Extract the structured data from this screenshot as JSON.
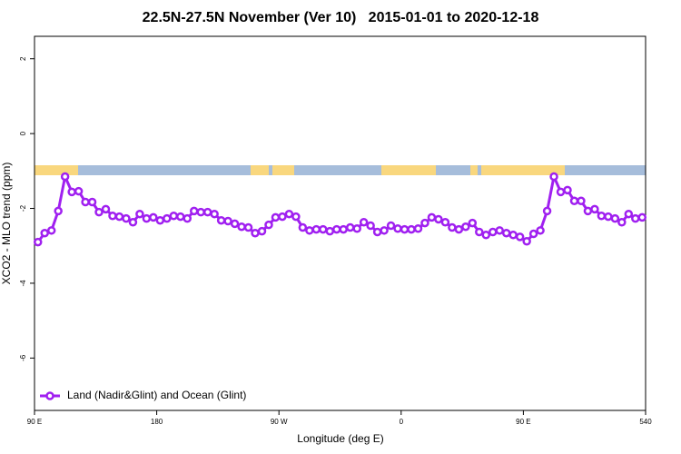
{
  "chart_data": {
    "type": "line",
    "title": "22.5N-27.5N November (Ver 10)   2015-01-01 to 2020-12-18",
    "x_label": "Longitude (deg E)",
    "y_label": "XCO2 - MLO trend (ppm)",
    "xlim": [
      90,
      540
    ],
    "ylim": [
      -7.4,
      2.6
    ],
    "xticks": [
      {
        "value": 90,
        "label": "90 E"
      },
      180,
      {
        "value": 270,
        "label": "90 W"
      },
      {
        "value": 360,
        "label": "0"
      },
      {
        "value": 450,
        "label": "90 E"
      },
      540
    ],
    "yticks": [
      -6,
      -4,
      -2,
      0,
      2
    ],
    "grid": false,
    "legend_position": "lower left",
    "x": [
      92.5,
      97.5,
      102.5,
      107.5,
      112.5,
      117.5,
      122.5,
      127.5,
      132.5,
      137.5,
      142.5,
      147.5,
      152.5,
      157.5,
      162.5,
      167.5,
      172.5,
      177.5,
      182.5,
      187.5,
      192.5,
      197.5,
      202.5,
      207.5,
      212.5,
      217.5,
      222.5,
      227.5,
      232.5,
      237.5,
      242.5,
      247.5,
      252.5,
      257.5,
      262.5,
      267.5,
      272.5,
      277.5,
      282.5,
      287.5,
      292.5,
      297.5,
      302.5,
      307.5,
      312.5,
      317.5,
      322.5,
      327.5,
      332.5,
      337.5,
      342.5,
      347.5,
      352.5,
      357.5,
      362.5,
      367.5,
      372.5,
      377.5,
      382.5,
      387.5,
      392.5,
      397.5,
      402.5,
      407.5,
      412.5,
      417.5,
      422.5,
      427.5,
      432.5,
      437.5,
      442.5,
      447.5,
      452.5,
      457.5,
      462.5,
      467.5,
      472.5,
      477.5,
      482.5,
      487.5,
      492.5,
      497.5,
      502.5,
      507.5,
      512.5,
      517.5,
      522.5,
      527.5,
      532.5,
      537.5
    ],
    "series": [
      {
        "name": "Land (Nadir&Glint) and Ocean (Glint)",
        "color": "#a020f0",
        "values": [
          -2.9,
          -2.66,
          -2.59,
          -2.07,
          -1.15,
          -1.56,
          -1.54,
          -1.83,
          -1.83,
          -2.1,
          -2.02,
          -2.2,
          -2.22,
          -2.27,
          -2.37,
          -2.15,
          -2.27,
          -2.24,
          -2.32,
          -2.27,
          -2.2,
          -2.22,
          -2.27,
          -2.07,
          -2.1,
          -2.1,
          -2.15,
          -2.32,
          -2.34,
          -2.41,
          -2.49,
          -2.51,
          -2.66,
          -2.61,
          -2.44,
          -2.24,
          -2.22,
          -2.15,
          -2.22,
          -2.51,
          -2.59,
          -2.56,
          -2.56,
          -2.61,
          -2.56,
          -2.56,
          -2.51,
          -2.54,
          -2.37,
          -2.46,
          -2.63,
          -2.59,
          -2.46,
          -2.54,
          -2.56,
          -2.56,
          -2.54,
          -2.39,
          -2.24,
          -2.29,
          -2.37,
          -2.51,
          -2.56,
          -2.49,
          -2.39,
          -2.63,
          -2.71,
          -2.63,
          -2.59,
          -2.66,
          -2.71,
          -2.76,
          -2.88,
          -2.68,
          -2.59,
          -2.07,
          -1.15,
          -1.56,
          -1.51,
          -1.8,
          -1.8,
          -2.07,
          -2.02,
          -2.2,
          -2.22,
          -2.27,
          -2.37,
          -2.15,
          -2.27,
          -2.24
        ]
      }
    ]
  }
}
